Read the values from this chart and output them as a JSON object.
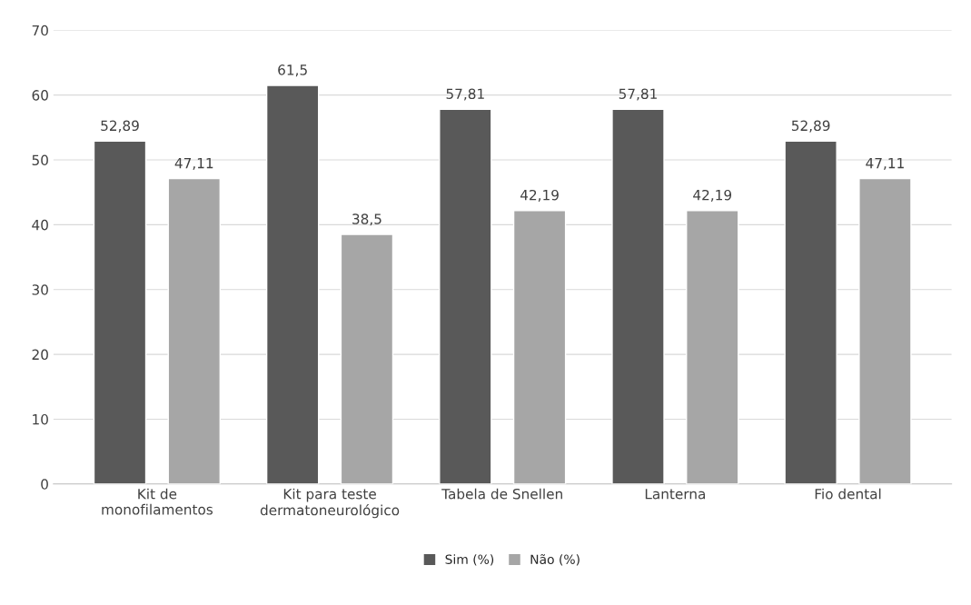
{
  "chart_data": {
    "type": "bar",
    "categories": [
      "Kit de\nmonofilamentos",
      "Kit para teste\ndermatoneurológico",
      "Tabela de Snellen",
      "Lanterna",
      "Fio dental"
    ],
    "series": [
      {
        "name": "Sim (%)",
        "color": "#595959",
        "values": [
          52.89,
          61.5,
          57.81,
          57.81,
          52.89
        ],
        "value_labels": [
          "52,89",
          "61,5",
          "57,81",
          "57,81",
          "52,89"
        ]
      },
      {
        "name": "Não (%)",
        "color": "#a6a6a6",
        "values": [
          47.11,
          38.5,
          42.19,
          42.19,
          47.11
        ],
        "value_labels": [
          "47,11",
          "38,5",
          "42,19",
          "42,19",
          "47,11"
        ]
      }
    ],
    "ylim": [
      0,
      70
    ],
    "yticks": [
      0,
      10,
      20,
      30,
      40,
      50,
      60,
      70
    ],
    "grid": "y",
    "legend": "bottom"
  }
}
